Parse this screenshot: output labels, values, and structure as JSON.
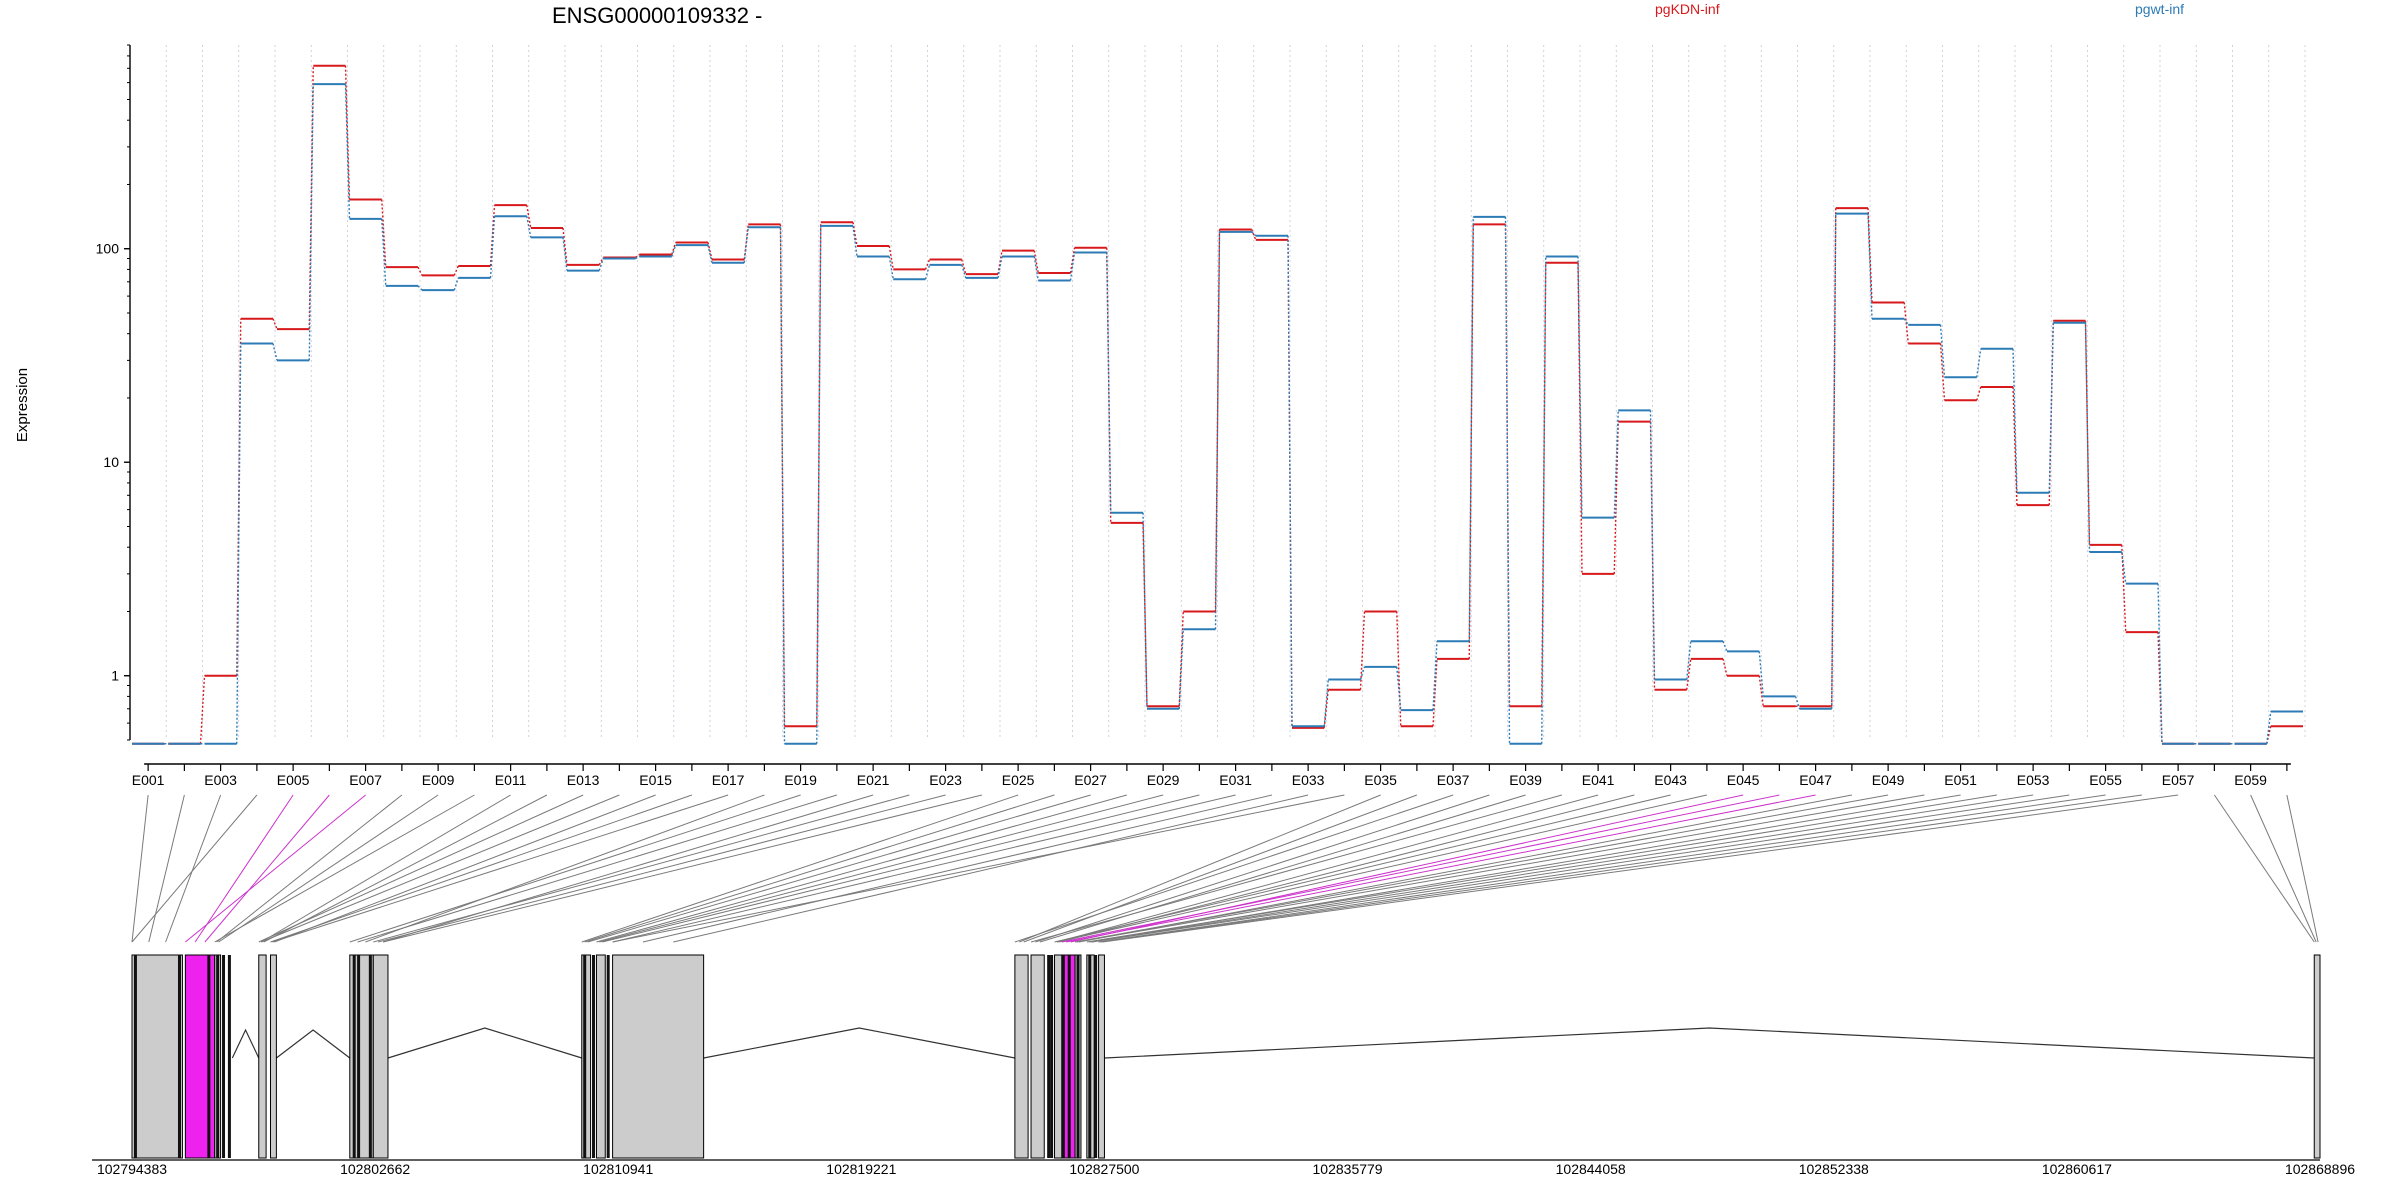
{
  "chart_data": {
    "type": "line",
    "title": "ENSG00000109332 -",
    "ylabel": "Expression",
    "xlabel": "",
    "y_scale": "log",
    "ylim": [
      0.5,
      900
    ],
    "y_ticks": [
      {
        "value": 1,
        "label": "1"
      },
      {
        "value": 10,
        "label": "10"
      },
      {
        "value": 100,
        "label": "100"
      }
    ],
    "legend_position": "top",
    "grid": "vertical dotted",
    "colors": {
      "pgKDN-inf": "#d7191c",
      "pgwt-inf": "#2c7bb6",
      "highlight": "#ee22ee",
      "exon": "#cccccc"
    },
    "categories": [
      "E001",
      "E002",
      "E003",
      "E004",
      "E005",
      "E006",
      "E007",
      "E008",
      "E009",
      "E010",
      "E011",
      "E012",
      "E013",
      "E014",
      "E015",
      "E016",
      "E017",
      "E018",
      "E019",
      "E020",
      "E021",
      "E022",
      "E023",
      "E024",
      "E025",
      "E026",
      "E027",
      "E028",
      "E029",
      "E030",
      "E031",
      "E032",
      "E033",
      "E034",
      "E035",
      "E036",
      "E037",
      "E038",
      "E039",
      "E040",
      "E041",
      "E042",
      "E043",
      "E044",
      "E045",
      "E046",
      "E047",
      "E048",
      "E049",
      "E050",
      "E051",
      "E052",
      "E053",
      "E054",
      "E055",
      "E056",
      "E057",
      "E058",
      "E059",
      "E060"
    ],
    "x_tick_labels": [
      "E001",
      "E003",
      "E005",
      "E007",
      "E009",
      "E011",
      "E013",
      "E015",
      "E017",
      "E019",
      "E021",
      "E023",
      "E025",
      "E027",
      "E029",
      "E031",
      "E033",
      "E035",
      "E037",
      "E039",
      "E041",
      "E043",
      "E045",
      "E047",
      "E049",
      "E051",
      "E053",
      "E055",
      "E057",
      "E059"
    ],
    "series": [
      {
        "name": "pgKDN-inf",
        "values": [
          0.48,
          0.48,
          1.0,
          47,
          42,
          720,
          170,
          82,
          75,
          83,
          160,
          125,
          84,
          91,
          94,
          107,
          89,
          130,
          0.58,
          133,
          103,
          80,
          89,
          76,
          98,
          77,
          101,
          5.2,
          0.72,
          2.0,
          123,
          110,
          0.57,
          0.86,
          2.0,
          0.58,
          1.2,
          130,
          0.72,
          86,
          3.0,
          15.5,
          0.86,
          1.2,
          1.0,
          0.72,
          0.72,
          155,
          56,
          36,
          19.5,
          22.5,
          6.3,
          46,
          4.1,
          1.6,
          0.48,
          0.48,
          0.48,
          0.58
        ]
      },
      {
        "name": "pgwt-inf",
        "values": [
          0.48,
          0.48,
          0.48,
          36,
          30,
          590,
          138,
          67,
          64,
          73,
          142,
          113,
          79,
          90,
          92,
          104,
          86,
          126,
          0.48,
          128,
          92,
          72,
          84,
          73,
          92,
          71,
          96,
          5.8,
          0.7,
          1.65,
          120,
          115,
          0.58,
          0.96,
          1.1,
          0.69,
          1.45,
          141,
          0.48,
          92,
          5.5,
          17.5,
          0.96,
          1.45,
          1.3,
          0.8,
          0.7,
          146,
          47,
          44,
          25,
          34,
          7.2,
          45,
          3.8,
          2.7,
          0.48,
          0.48,
          0.48,
          0.68
        ]
      }
    ],
    "genomic_axis": {
      "labels": [
        "102794383",
        "102802662",
        "102810941",
        "102819221",
        "102827500",
        "102835779",
        "102844058",
        "102852338",
        "102860617",
        "102868896"
      ],
      "start": 102794383,
      "end": 102868896
    },
    "gene_model": {
      "exon_segments": [
        [
          102794383,
          102796100,
          "normal"
        ],
        [
          102796200,
          102797200,
          "highlight"
        ],
        [
          102797200,
          102797400,
          "normal"
        ],
        [
          102798700,
          102798950,
          "normal"
        ],
        [
          102799100,
          102799300,
          "normal"
        ],
        [
          102801800,
          102802600,
          "normal"
        ],
        [
          102802600,
          102803100,
          "normal"
        ],
        [
          102809700,
          102810000,
          "normal"
        ],
        [
          102810200,
          102810500,
          "normal"
        ],
        [
          102810750,
          102813850,
          "normal"
        ],
        [
          102824450,
          102824900,
          "normal"
        ],
        [
          102825000,
          102825450,
          "normal"
        ],
        [
          102825800,
          102826050,
          "normal"
        ],
        [
          102826050,
          102826500,
          "highlight"
        ],
        [
          102826500,
          102826700,
          "normal"
        ],
        [
          102826900,
          102827150,
          "normal"
        ],
        [
          102827300,
          102827500,
          "normal"
        ],
        [
          102868700,
          102868896,
          "normal"
        ]
      ],
      "dark_marks": [
        102794500,
        102796000,
        102797000,
        102797300,
        102797500,
        102797700,
        102801950,
        102802100,
        102802500,
        102809800,
        102810100,
        102810600,
        102825600,
        102825700,
        102826100,
        102826300,
        102826600,
        102827000,
        102827200
      ],
      "introns": [
        [
          102797800,
          102798700
        ],
        [
          102799300,
          102801800
        ],
        [
          102803100,
          102809700
        ],
        [
          102813850,
          102824450
        ],
        [
          102827500,
          102868700
        ]
      ]
    }
  }
}
